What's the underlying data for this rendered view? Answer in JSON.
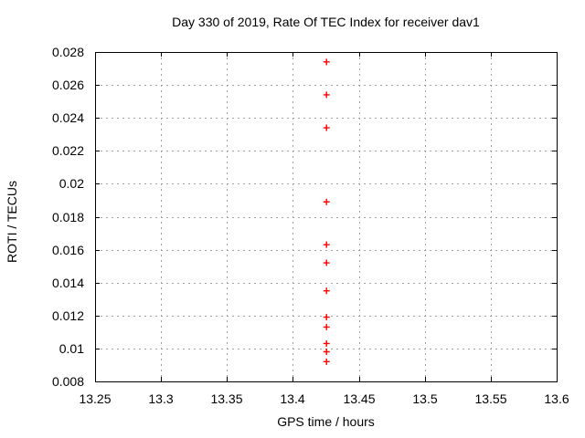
{
  "chart_data": {
    "type": "scatter",
    "title": "Day 330 of 2019, Rate Of TEC Index for receiver dav1",
    "xlabel": "GPS time / hours",
    "ylabel": "ROTI / TECUs",
    "xlim": [
      13.25,
      13.6
    ],
    "ylim": [
      0.008,
      0.028
    ],
    "xticks": {
      "values": [
        13.25,
        13.3,
        13.35,
        13.4,
        13.45,
        13.5,
        13.55,
        13.6
      ],
      "labels": [
        "13.25",
        "13.3",
        "13.35",
        "13.4",
        "13.45",
        "13.5",
        "13.55",
        "13.6"
      ]
    },
    "yticks": {
      "values": [
        0.008,
        0.01,
        0.012,
        0.014,
        0.016,
        0.018,
        0.02,
        0.022,
        0.024,
        0.026,
        0.028
      ],
      "labels": [
        "0.008",
        "0.01",
        "0.012",
        "0.014",
        "0.016",
        "0.018",
        "0.02",
        "0.022",
        "0.024",
        "0.026",
        "0.028"
      ]
    },
    "grid": true,
    "legend": "none",
    "marker": "plus",
    "colors": {
      "background": "#ffffff",
      "axis": "#000000",
      "grid": "#a0a0a0",
      "marker": "#ff0000",
      "text": "#000000"
    },
    "points": {
      "x": [
        13.4255,
        13.4255,
        13.4255,
        13.4255,
        13.4255,
        13.4255,
        13.4255,
        13.4255,
        13.4255,
        13.4255,
        13.4255,
        13.4255
      ],
      "y": [
        0.0274,
        0.0254,
        0.0234,
        0.0189,
        0.0163,
        0.0152,
        0.0135,
        0.0119,
        0.0113,
        0.0103,
        0.0098,
        0.0092
      ]
    }
  }
}
